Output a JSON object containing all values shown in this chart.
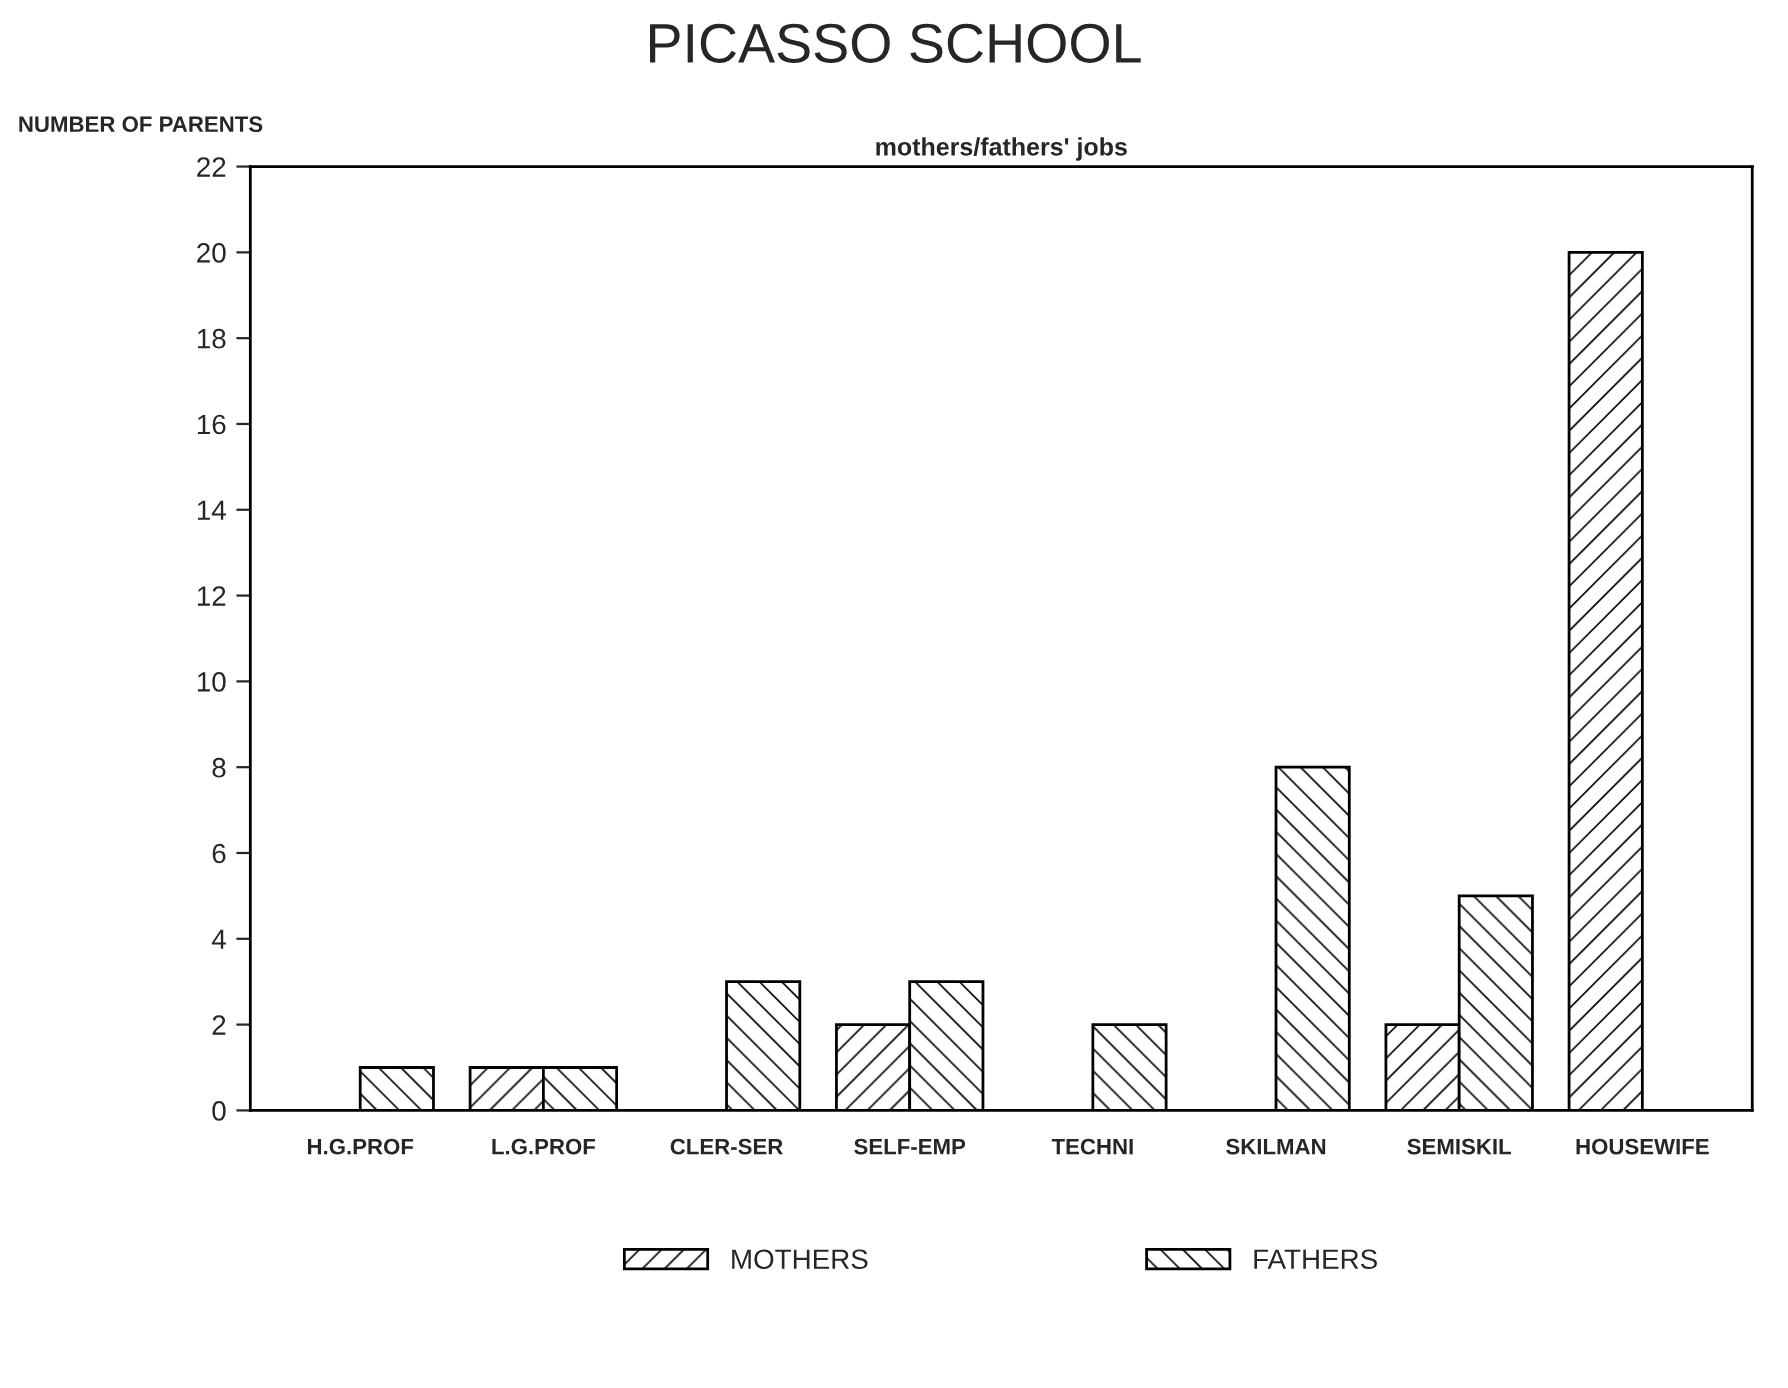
{
  "chart_data": {
    "type": "bar",
    "title": "PICASSO SCHOOL",
    "subtitle": "mothers/fathers' jobs",
    "ylabel": "NUMBER OF PARENTS",
    "categories": [
      "H.G.PROF",
      "L.G.PROF",
      "CLER-SER",
      "SELF-EMP",
      "TECHNI",
      "SKILMAN",
      "SEMISKIL",
      "HOUSEWIFE"
    ],
    "series": [
      {
        "name": "MOTHERS",
        "color": "#000000",
        "values": [
          0,
          1,
          0,
          2,
          0,
          0,
          2,
          20
        ]
      },
      {
        "name": "FATHERS",
        "color": "#000000",
        "values": [
          1,
          1,
          3,
          3,
          2,
          8,
          5,
          0
        ]
      }
    ],
    "ylim": [
      0,
      22
    ],
    "yticks": [
      0,
      2,
      4,
      6,
      8,
      10,
      12,
      14,
      16,
      18,
      20,
      22
    ],
    "grid": false,
    "legend": "bottom"
  }
}
